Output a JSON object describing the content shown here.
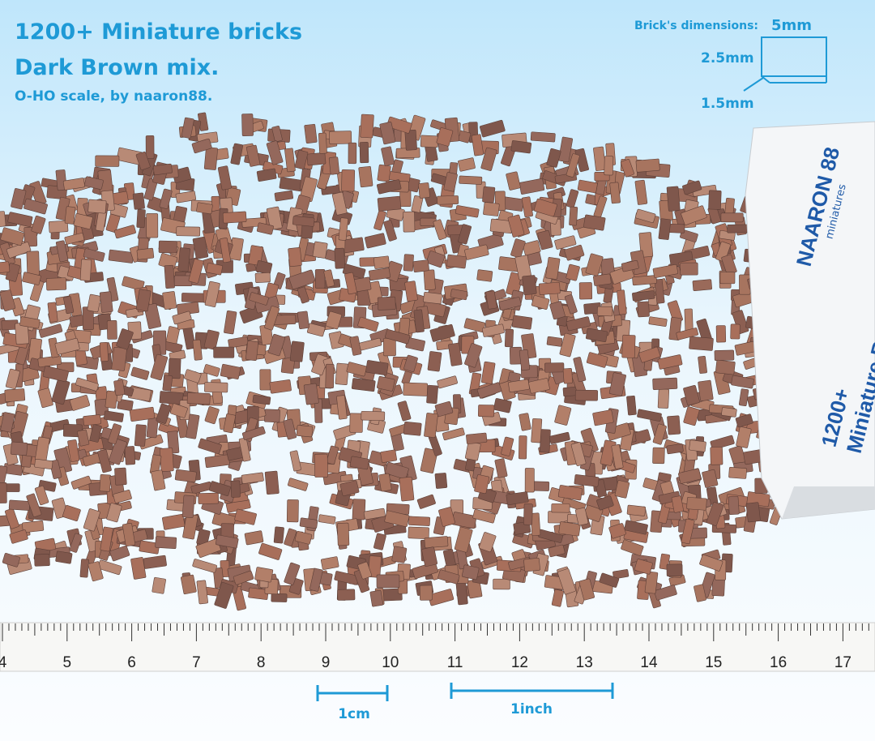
{
  "header": {
    "title": "1200+ Miniature bricks",
    "subtitle": "Dark Brown mix.",
    "credit": "O-HO scale, by naaron88."
  },
  "dimensions": {
    "label": "Brick's dimensions:",
    "length": "5mm",
    "height": "2.5mm",
    "width": "1.5mm"
  },
  "ruler": {
    "numbers": [
      "4",
      "5",
      "6",
      "7",
      "8",
      "9",
      "10",
      "11",
      "12",
      "13",
      "14",
      "15",
      "16",
      "17"
    ]
  },
  "scale_bars": {
    "cm": "1cm",
    "inch": "1inch"
  },
  "box": {
    "brand": "NAARON 88",
    "tagline": "miniatures",
    "count": "1200+",
    "product": "Miniature Bricks"
  }
}
